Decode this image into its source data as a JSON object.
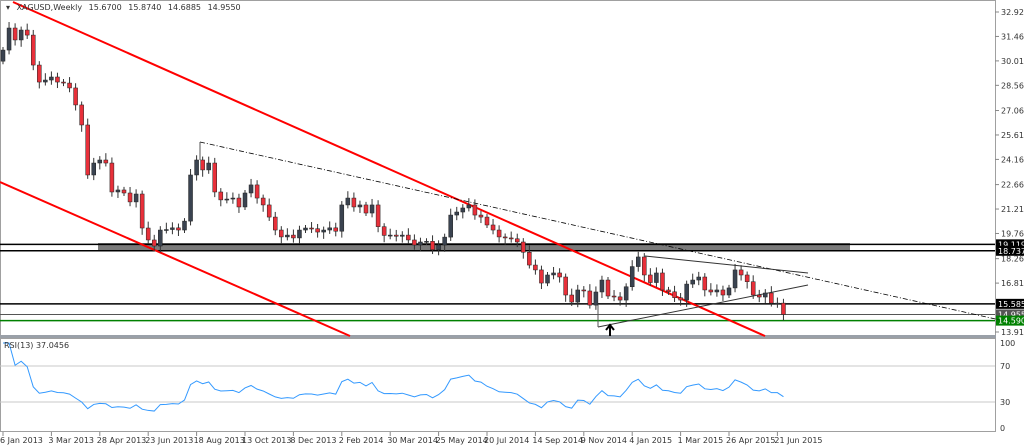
{
  "header": {
    "symbol": "XAGUSD,Weekly",
    "open": "15.6700",
    "high": "15.8740",
    "low": "14.6885",
    "close": "14.9550"
  },
  "rsi": {
    "label": "RSI(13)",
    "value": "37.0456",
    "levels": [
      "100",
      "70",
      "30",
      "0"
    ]
  },
  "colors": {
    "bear": "#e8303a",
    "bull": "#3a4350",
    "channel": "#ff0000",
    "support": "#008000",
    "rsi_line": "#3399ff"
  },
  "chart_data": {
    "type": "candlestick",
    "title": "XAGUSD,Weekly",
    "ylim": [
      13.913,
      32.921
    ],
    "price_ticks": [
      "32.9210",
      "31.4690",
      "30.0170",
      "28.5650",
      "27.0690",
      "25.6170",
      "24.1650",
      "22.6690",
      "21.2170",
      "19.7650",
      "18.2690",
      "16.8170",
      "13.9130"
    ],
    "date_ticks": [
      "6 Jan 2013",
      "3 Mar 2013",
      "28 Apr 2013",
      "23 Jun 2013",
      "18 Aug 2013",
      "13 Oct 2013",
      "8 Dec 2013",
      "2 Feb 2014",
      "30 Mar 2014",
      "25 May 2014",
      "20 Jul 2014",
      "14 Sep 2014",
      "9 Nov 2014",
      "4 Jan 2015",
      "1 Mar 2015",
      "26 Apr 2015",
      "21 Jun 2015"
    ],
    "first_open": 30.0,
    "closes": [
      30.66,
      31.97,
      31.26,
      31.85,
      31.55,
      29.77,
      28.76,
      28.88,
      29.06,
      28.76,
      28.7,
      28.41,
      27.4,
      26.21,
      23.24,
      23.95,
      24.13,
      23.95,
      22.23,
      22.35,
      22.17,
      21.64,
      22.11,
      20.09,
      19.38,
      19.02,
      19.97,
      20.0,
      20.1,
      19.97,
      20.5,
      23.24,
      24.13,
      23.54,
      23.95,
      22.23,
      21.76,
      21.81,
      21.87,
      21.34,
      22.17,
      22.65,
      21.87,
      21.46,
      20.74,
      19.97,
      19.56,
      19.67,
      19.5,
      19.97,
      20.09,
      20.05,
      19.85,
      19.97,
      20.1,
      19.9,
      21.46,
      21.87,
      21.34,
      21.46,
      20.98,
      21.46,
      20.17,
      19.65,
      19.67,
      19.6,
      19.67,
      19.38,
      19.08,
      19.26,
      19.3,
      18.8,
      19.08,
      19.55,
      20.86,
      21.04,
      21.28,
      21.46,
      20.86,
      20.74,
      20.27,
      19.97,
      19.56,
      19.5,
      19.45,
      19.26,
      18.65,
      17.89,
      17.6,
      16.82,
      17.3,
      17.42,
      17.18,
      16.11,
      15.69,
      16.41,
      16.35,
      15.51,
      16.29,
      17.0,
      16.05,
      16.0,
      15.81,
      16.6,
      17.8,
      18.37,
      17.3,
      16.85,
      17.42,
      16.41,
      16.3,
      15.95,
      15.81,
      16.76,
      17.0,
      17.18,
      16.41,
      16.29,
      16.41,
      16.11,
      16.53,
      17.6,
      17.3,
      16.9,
      16.11,
      15.99,
      16.23,
      15.63,
      15.63,
      14.955
    ],
    "levels": [
      {
        "label": "19.1192",
        "value": 19.1192,
        "color": "#000000"
      },
      {
        "label": "18.7377",
        "value": 18.7377,
        "color": "#000000"
      },
      {
        "label": "15.5850",
        "value": 15.585,
        "color": "#000000"
      },
      {
        "label": "14.9550",
        "value": 14.955,
        "color": "#555555"
      },
      {
        "label": "14.5900",
        "value": 14.59,
        "color": "#008000"
      }
    ]
  }
}
